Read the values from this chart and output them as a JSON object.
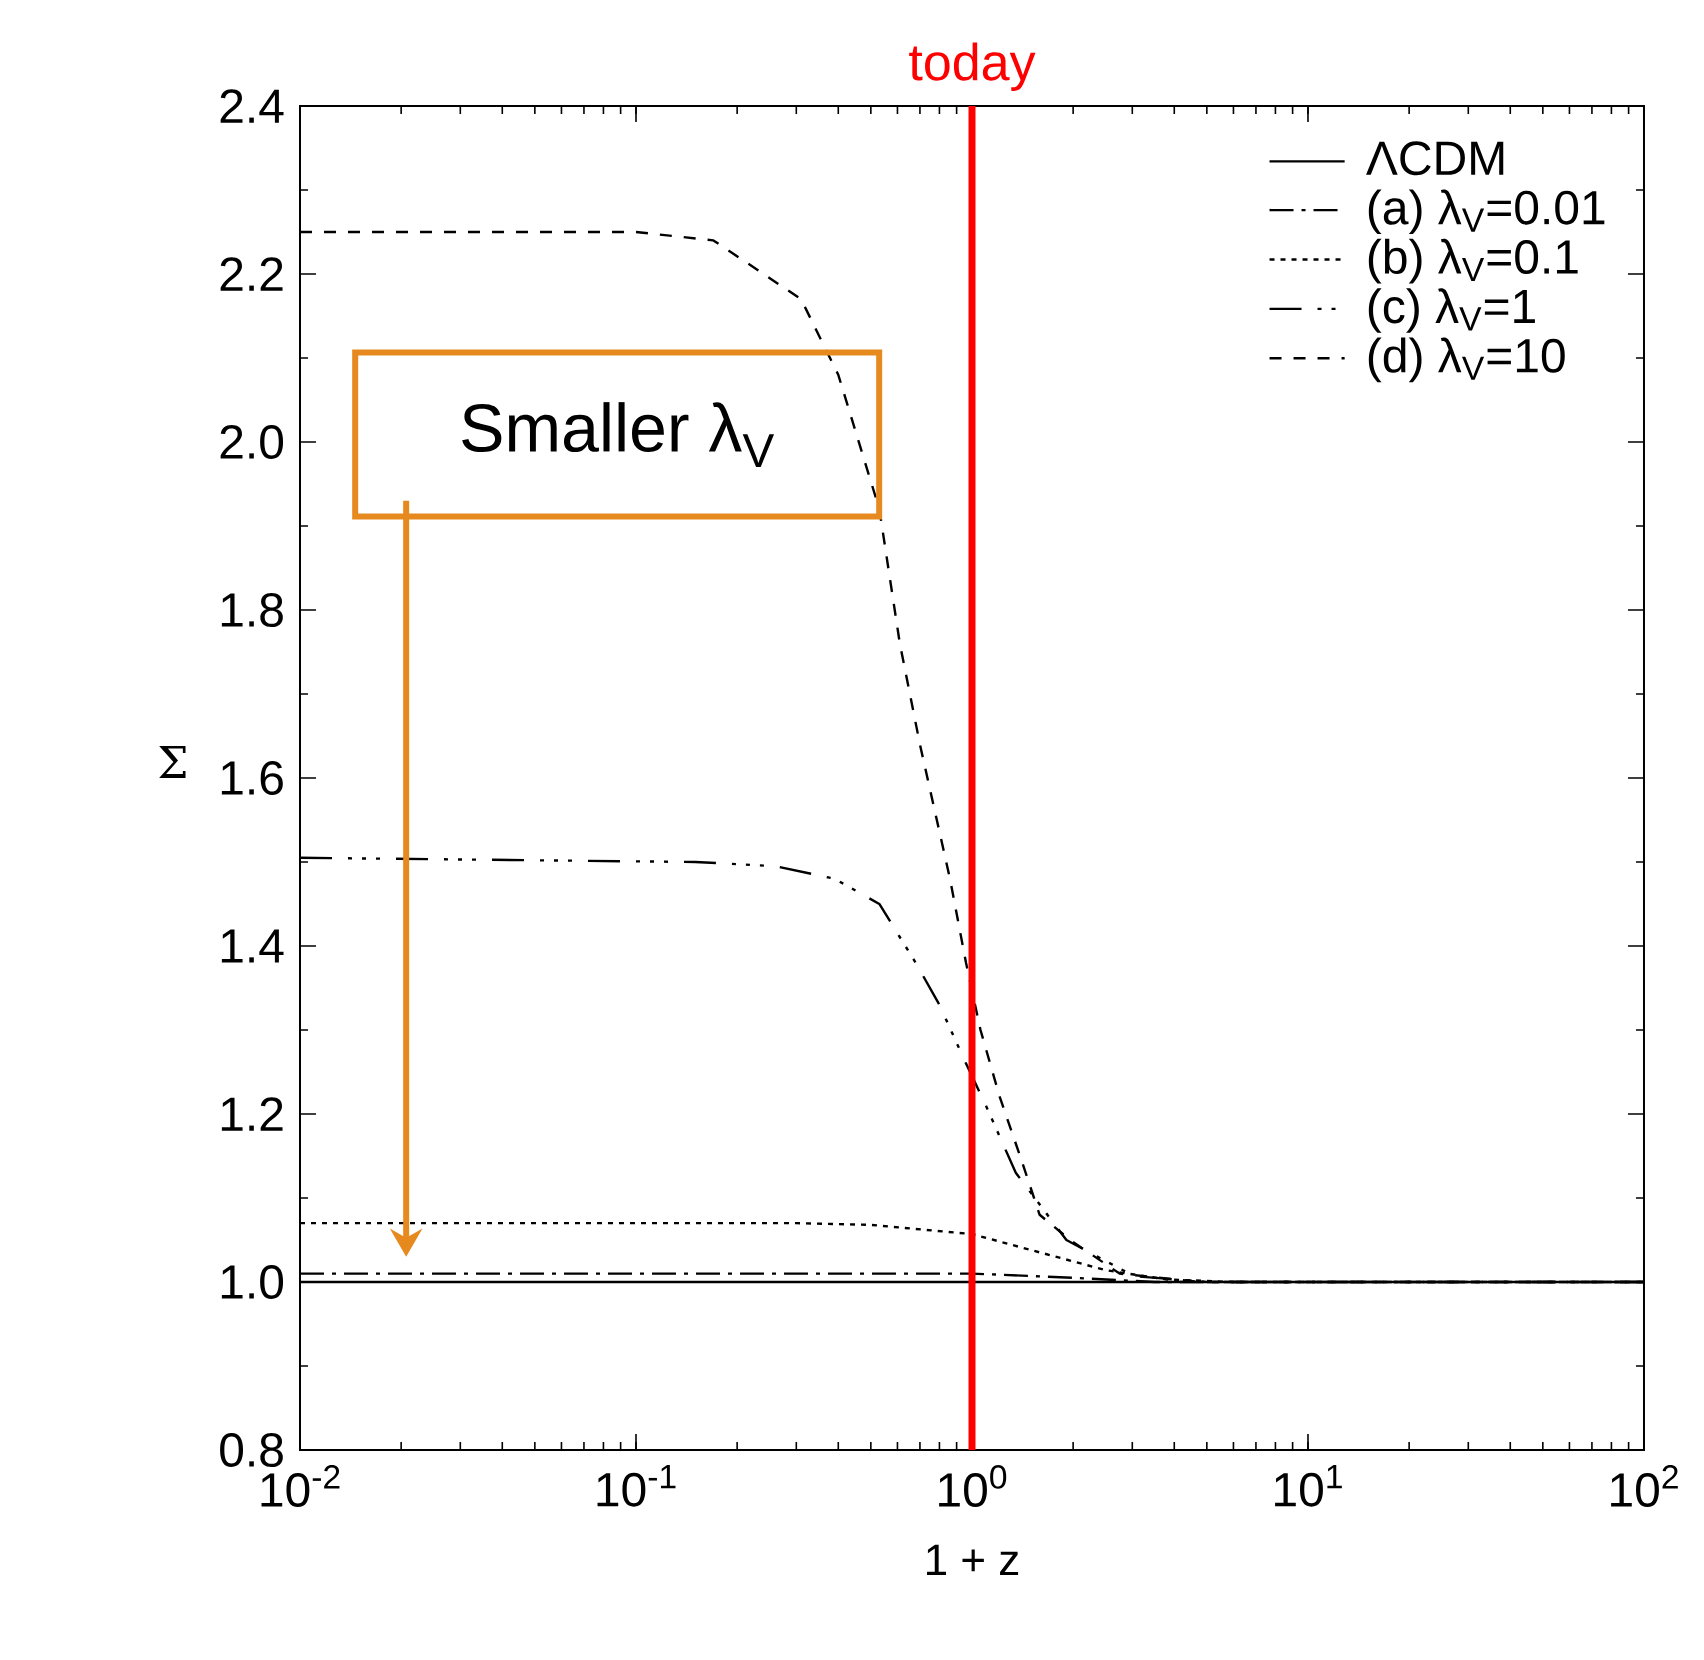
{
  "chart_data": {
    "type": "line",
    "xlabel": "1 + z",
    "ylabel": "Σ",
    "log": "x",
    "grid": false,
    "legend": "top right",
    "marker": "none",
    "xlim": [
      0.01,
      100
    ],
    "ylim": [
      0.8,
      2.4
    ],
    "xticks": [
      {
        "value": 0.01,
        "label": "10$^{-2}$"
      },
      {
        "value": 0.1,
        "label": "10$^{-1}$"
      },
      {
        "value": 1,
        "label": "10$^{0}$"
      },
      {
        "value": 10,
        "label": "10$^{1}$"
      },
      {
        "value": 100,
        "label": "10$^{2}$"
      }
    ],
    "yticks": [
      {
        "value": 0.8,
        "label": "0.8"
      },
      {
        "value": 1.0,
        "label": "1.0"
      },
      {
        "value": 1.2,
        "label": "1.2"
      },
      {
        "value": 1.4,
        "label": "1.4"
      },
      {
        "value": 1.6,
        "label": "1.6"
      },
      {
        "value": 1.8,
        "label": "1.8"
      },
      {
        "value": 2.0,
        "label": "2.0"
      },
      {
        "value": 2.2,
        "label": "2.2"
      },
      {
        "value": 2.4,
        "label": "2.4"
      }
    ],
    "ref_lines": [
      {
        "axis": "x",
        "value": 1,
        "label": "today",
        "color": "#ff0000"
      }
    ],
    "annotations": [
      "Smaller λ$_{V}$"
    ],
    "series": [
      {
        "name": "ΛCDM",
        "color": "#000000",
        "line_style": "solid",
        "x": [
          0.01,
          100
        ],
        "values": [
          1.0,
          1.0
        ]
      },
      {
        "name": "(a) λ$_{V}$=0.01",
        "color": "#000000",
        "line_style": "dashdot",
        "x": [
          0.01,
          1.0,
          2.0,
          3.5,
          100
        ],
        "values": [
          1.01,
          1.01,
          1.005,
          1.0,
          1.0
        ]
      },
      {
        "name": "(b) λ$_{V}$=0.1",
        "color": "#000000",
        "line_style": "dotted",
        "x": [
          0.01,
          0.3,
          0.5,
          1.0,
          1.5,
          2.5,
          3.8,
          6,
          100
        ],
        "values": [
          1.07,
          1.07,
          1.068,
          1.057,
          1.038,
          1.014,
          1.003,
          1.0,
          1.0
        ]
      },
      {
        "name": "(c) λ$_{V}$=1",
        "color": "#000000",
        "line_style": "longdashdotdot",
        "x": [
          0.01,
          0.15,
          0.26,
          0.39,
          0.53,
          0.68,
          0.8,
          0.96,
          1.1,
          1.35,
          1.91,
          3.03,
          5,
          100
        ],
        "values": [
          1.505,
          1.5,
          1.495,
          1.48,
          1.45,
          1.38,
          1.33,
          1.26,
          1.21,
          1.13,
          1.05,
          1.007,
          1.0,
          1.0
        ]
      },
      {
        "name": "(d) λ$_{V}$=10",
        "color": "#000000",
        "line_style": "dashed",
        "x": [
          0.01,
          0.1,
          0.17,
          0.31,
          0.4,
          0.53,
          0.61,
          0.7,
          0.86,
          0.96,
          1.06,
          1.21,
          1.39,
          1.59,
          1.96,
          2.75,
          4.8,
          100
        ],
        "values": [
          2.25,
          2.25,
          2.24,
          2.17,
          2.08,
          1.92,
          1.76,
          1.64,
          1.48,
          1.38,
          1.3,
          1.22,
          1.15,
          1.08,
          1.05,
          1.01,
          1.0,
          1.0
        ]
      }
    ]
  }
}
